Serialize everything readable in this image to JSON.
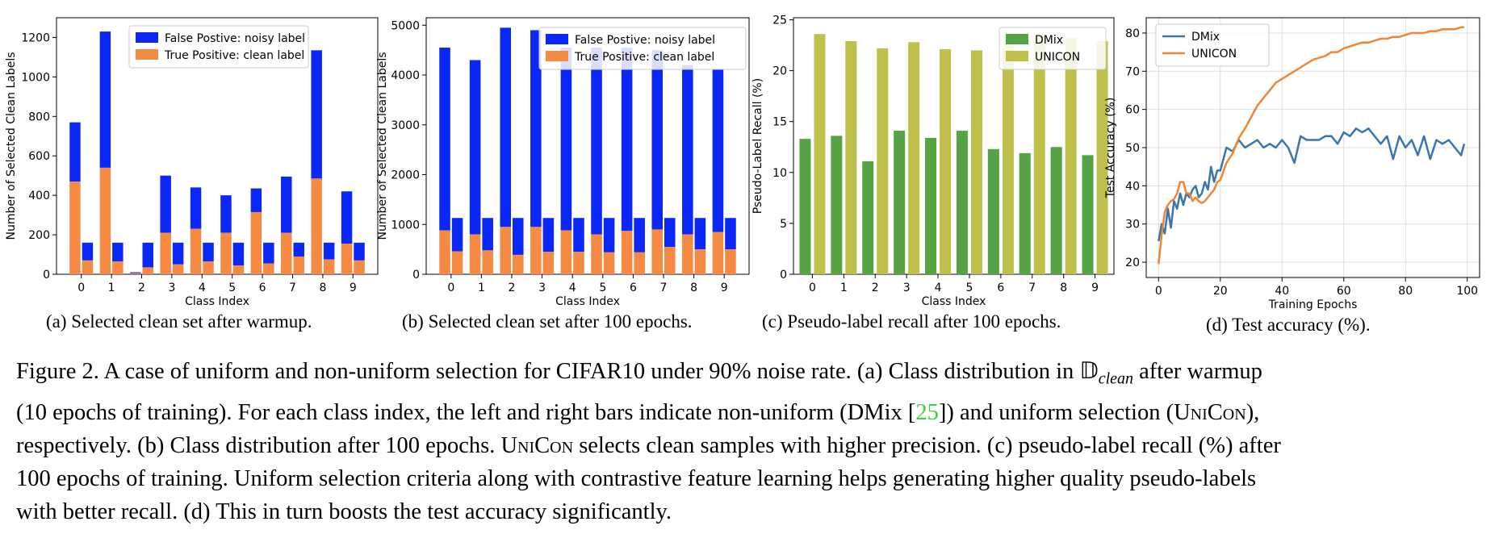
{
  "colors": {
    "blue": "#0a27f5",
    "orange": "#f58a45",
    "green": "#56a346",
    "olive": "#bfc04c",
    "line_blue": "#3b75af",
    "line_orange": "#ef8636"
  },
  "subcaptions": {
    "a": "(a) Selected clean set after warmup.",
    "b": "(b) Selected clean set after 100 epochs.",
    "c": "(c) Pseudo-label recall after 100 epochs.",
    "d": "(d) Test accuracy (%)."
  },
  "caption": {
    "l1a": "Figure 2. A case of uniform and non-uniform selection for CIFAR10 under 90% noise rate. (a) Class distribution in ",
    "dsym": "𝔻",
    "dsub": "clean",
    "l1b": " after warmup",
    "l2a": "(10 epochs of training). For each class index, the left and right bars indicate non-uniform (DMix [",
    "cite": "25",
    "l2b": "]) and uniform selection (",
    "unicon": "UniCon",
    "l2c": "),",
    "l3a": "respectively. (b) Class distribution after 100 epochs. ",
    "l3b": " selects clean samples with higher precision. (c) pseudo-label recall (%) after",
    "l4": "100 epochs of training.  Uniform selection criteria along with contrastive feature learning helps generating higher quality pseudo-labels",
    "l5": "with better recall. (d) This in turn boosts the test accuracy significantly."
  },
  "chart_data": [
    {
      "type": "bar",
      "panel": "a",
      "stacked": true,
      "xlabel": "Class Index",
      "ylabel": "Number of Selected Clean Labels",
      "ylim": [
        0,
        1300
      ],
      "yticks": [
        0,
        200,
        400,
        600,
        800,
        1000,
        1200
      ],
      "categories": [
        "0",
        "1",
        "2",
        "3",
        "4",
        "5",
        "6",
        "7",
        "8",
        "9"
      ],
      "legend": [
        "False Postive: noisy label",
        "True Positive: clean label"
      ],
      "legend_loc": "upper-center",
      "left_bars": {
        "total": [
          770,
          1230,
          10,
          500,
          440,
          400,
          435,
          495,
          1135,
          420
        ],
        "clean": [
          470,
          540,
          5,
          210,
          230,
          210,
          315,
          210,
          485,
          155
        ]
      },
      "right_bars": {
        "total": [
          160,
          160,
          160,
          160,
          160,
          160,
          160,
          160,
          160,
          160
        ],
        "clean": [
          70,
          65,
          35,
          50,
          65,
          45,
          55,
          90,
          75,
          70
        ]
      }
    },
    {
      "type": "bar",
      "panel": "b",
      "stacked": true,
      "xlabel": "Class Index",
      "ylabel": "Number of Selected Clean Labels",
      "ylim": [
        0,
        5150
      ],
      "yticks": [
        0,
        1000,
        2000,
        3000,
        4000,
        5000
      ],
      "categories": [
        "0",
        "1",
        "2",
        "3",
        "4",
        "5",
        "6",
        "7",
        "8",
        "9"
      ],
      "legend": [
        "False Postive: noisy label",
        "True Positive: clean label"
      ],
      "legend_loc": "upper-right",
      "left_bars": {
        "total": [
          4550,
          4300,
          4950,
          4900,
          4550,
          4550,
          4550,
          4500,
          4200,
          4120
        ],
        "clean": [
          880,
          800,
          950,
          950,
          880,
          800,
          870,
          900,
          800,
          850
        ]
      },
      "right_bars": {
        "total": [
          1130,
          1130,
          1130,
          1130,
          1130,
          1130,
          1130,
          1130,
          1130,
          1130
        ],
        "clean": [
          460,
          480,
          390,
          450,
          450,
          440,
          440,
          550,
          500,
          500
        ]
      }
    },
    {
      "type": "bar",
      "panel": "c",
      "xlabel": "Class Index",
      "ylabel": "Pseudo-Label Recall (%)",
      "ylim": [
        0,
        25.2
      ],
      "yticks": [
        0,
        5,
        10,
        15,
        20,
        25
      ],
      "categories": [
        "0",
        "1",
        "2",
        "3",
        "4",
        "5",
        "6",
        "7",
        "8",
        "9"
      ],
      "legend_loc": "upper-right",
      "series": [
        {
          "name": "DMix",
          "values": [
            13.3,
            13.6,
            11.1,
            14.1,
            13.4,
            14.1,
            12.3,
            11.9,
            12.5,
            11.7
          ]
        },
        {
          "name": "UNICON",
          "values": [
            23.6,
            22.9,
            22.2,
            22.8,
            22.1,
            22.0,
            22.4,
            23.4,
            23.2,
            22.9
          ]
        }
      ]
    },
    {
      "type": "line",
      "panel": "d",
      "xlabel": "Training Epochs",
      "ylabel": "Test Accuracy (%)",
      "xlim": [
        -4,
        104
      ],
      "ylim": [
        16,
        84
      ],
      "xticks": [
        0,
        20,
        40,
        60,
        80,
        100
      ],
      "yticks": [
        20,
        30,
        40,
        50,
        60,
        70,
        80
      ],
      "grid": true,
      "legend_loc": "upper-left",
      "series": [
        {
          "name": "DMix",
          "x": [
            0,
            1,
            2,
            3,
            4,
            5,
            6,
            7,
            8,
            9,
            10,
            11,
            12,
            13,
            14,
            15,
            16,
            17,
            18,
            19,
            20,
            22,
            24,
            26,
            28,
            30,
            32,
            34,
            36,
            38,
            40,
            42,
            44,
            46,
            48,
            50,
            52,
            54,
            56,
            58,
            60,
            62,
            64,
            66,
            68,
            70,
            72,
            74,
            76,
            78,
            80,
            82,
            84,
            86,
            88,
            90,
            92,
            94,
            96,
            98,
            99
          ],
          "y": [
            25.5,
            30,
            27.5,
            34,
            29,
            36,
            34,
            38,
            35,
            38,
            37,
            39,
            40,
            37,
            38,
            41,
            39,
            45,
            41,
            44,
            44,
            50,
            49,
            52,
            50,
            51,
            52,
            50,
            51,
            50,
            52,
            50,
            46,
            53,
            52,
            52,
            52,
            53,
            53,
            51,
            54,
            53,
            55,
            54,
            55,
            53,
            51,
            53,
            47,
            53,
            50,
            52,
            48,
            53,
            47,
            52,
            51,
            52,
            50,
            48,
            51
          ]
        },
        {
          "name": "UNICON",
          "x": [
            0,
            1,
            2,
            3,
            4,
            5,
            6,
            7,
            8,
            9,
            10,
            11,
            12,
            13,
            14,
            15,
            16,
            17,
            18,
            19,
            20,
            22,
            24,
            26,
            28,
            30,
            32,
            34,
            36,
            38,
            40,
            42,
            44,
            46,
            48,
            50,
            52,
            54,
            56,
            58,
            60,
            62,
            64,
            66,
            68,
            70,
            72,
            74,
            76,
            78,
            80,
            82,
            84,
            86,
            88,
            90,
            92,
            94,
            96,
            98,
            99
          ],
          "y": [
            19.5,
            27,
            33,
            35,
            36,
            36.5,
            38,
            41,
            41,
            38,
            38,
            36,
            37,
            36,
            35.5,
            36,
            37,
            38,
            39,
            41,
            41.5,
            46,
            48.5,
            52.5,
            55,
            58,
            61,
            63,
            65,
            67,
            68,
            69,
            70,
            71,
            72,
            73,
            73.5,
            74,
            75,
            75,
            76,
            76.5,
            77,
            77.5,
            77.5,
            78,
            78.5,
            78.5,
            79,
            79,
            79.5,
            80,
            80,
            80,
            80.5,
            80.5,
            81,
            81,
            81,
            81.5,
            81.5
          ]
        }
      ]
    }
  ]
}
